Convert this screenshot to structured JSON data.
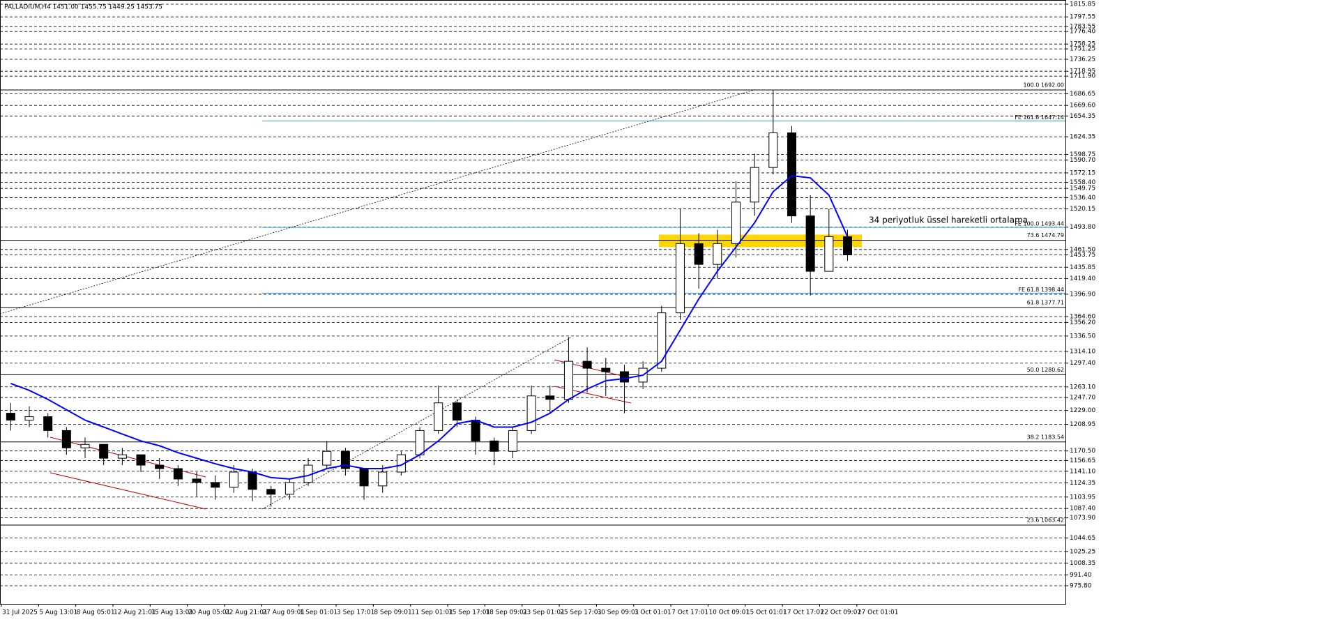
{
  "chart_data": {
    "type": "candlestick",
    "title": "PALLADIUM,H4  1451.00 1455.75 1449.25 1453.75",
    "annotation": "34 periyotluk üssel hareketli ortalama",
    "time_labels": [
      "31 Jul 2025",
      "5 Aug 13:01",
      "8 Aug 05:01",
      "12 Aug 21:01",
      "15 Aug 13:01",
      "20 Aug 05:01",
      "22 Aug 21:01",
      "27 Aug 09:01",
      "1 Sep 01:01",
      "3 Sep 17:01",
      "8 Sep 09:01",
      "11 Sep 01:01",
      "15 Sep 17:01",
      "18 Sep 09:01",
      "23 Sep 01:01",
      "25 Sep 17:01",
      "30 Sep 09:01",
      "3 Oct 01:01",
      "7 Oct 17:01",
      "10 Oct 09:01",
      "15 Oct 01:01",
      "17 Oct 17:01",
      "22 Oct 09:01",
      "27 Oct 01:01"
    ],
    "open": [
      1225,
      1215,
      1220,
      1200,
      1175,
      1180,
      1160,
      1165,
      1150,
      1145,
      1130,
      1125,
      1118,
      1140,
      1115,
      1108,
      1125,
      1150,
      1170,
      1145,
      1120,
      1140,
      1165,
      1200,
      1240,
      1215,
      1185,
      1170,
      1200,
      1250,
      1245,
      1300,
      1290,
      1285,
      1270,
      1290,
      1370,
      1470,
      1440,
      1470,
      1530,
      1580,
      1630,
      1510,
      1430,
      1480
    ],
    "high": [
      1240,
      1235,
      1225,
      1205,
      1190,
      1180,
      1175,
      1165,
      1160,
      1150,
      1140,
      1135,
      1150,
      1145,
      1120,
      1130,
      1160,
      1185,
      1175,
      1145,
      1150,
      1170,
      1205,
      1265,
      1245,
      1220,
      1190,
      1205,
      1265,
      1265,
      1335,
      1320,
      1305,
      1295,
      1300,
      1380,
      1520,
      1485,
      1490,
      1560,
      1600,
      1692,
      1640,
      1540,
      1520,
      1490
    ],
    "low": [
      1200,
      1205,
      1190,
      1165,
      1160,
      1150,
      1150,
      1140,
      1130,
      1120,
      1105,
      1100,
      1110,
      1098,
      1090,
      1100,
      1120,
      1145,
      1135,
      1100,
      1110,
      1135,
      1160,
      1195,
      1205,
      1165,
      1150,
      1160,
      1195,
      1225,
      1240,
      1255,
      1250,
      1225,
      1260,
      1285,
      1360,
      1405,
      1420,
      1450,
      1510,
      1570,
      1500,
      1395,
      1430,
      1445
    ],
    "close": [
      1215,
      1220,
      1200,
      1175,
      1180,
      1160,
      1165,
      1150,
      1145,
      1130,
      1125,
      1118,
      1140,
      1115,
      1108,
      1125,
      1150,
      1170,
      1145,
      1120,
      1140,
      1165,
      1200,
      1240,
      1215,
      1185,
      1170,
      1200,
      1250,
      1245,
      1300,
      1290,
      1285,
      1270,
      1290,
      1370,
      1470,
      1440,
      1470,
      1530,
      1580,
      1630,
      1510,
      1430,
      1480,
      1453.75
    ],
    "ema": {
      "color": "#0000ff",
      "values": [
        1268,
        1258,
        1245,
        1230,
        1215,
        1205,
        1195,
        1185,
        1178,
        1168,
        1160,
        1152,
        1145,
        1140,
        1132,
        1130,
        1135,
        1145,
        1150,
        1145,
        1145,
        1150,
        1165,
        1185,
        1210,
        1215,
        1205,
        1205,
        1212,
        1225,
        1245,
        1260,
        1272,
        1275,
        1280,
        1300,
        1345,
        1390,
        1430,
        1465,
        1500,
        1545,
        1568,
        1565,
        1540,
        1480
      ]
    },
    "ylim": [
      975.8,
      1815.85
    ],
    "yticks": [
      1815.85,
      1797.55,
      1783.55,
      {
        "value": 1776.4,
        "label": "1776.40"
      },
      1758.25,
      1751.25,
      1736.25,
      1718.95,
      {
        "value": 1711.9,
        "label": "1711.90"
      },
      1686.65,
      {
        "value": 1669.6,
        "label": "1669.60"
      },
      1654.35,
      1624.35,
      1598.75,
      {
        "value": 1590.7,
        "label": "1590.70"
      },
      1572.15,
      {
        "value": 1558.4,
        "label": "1558.40"
      },
      1549.75,
      {
        "value": 1536.4,
        "label": "1536.40"
      },
      1520.15,
      {
        "value": 1493.8,
        "label": "1493.80"
      },
      {
        "value": 1461.5,
        "label": "1461.50"
      },
      1453.75,
      1435.85,
      {
        "value": 1419.4,
        "label": "1419.40"
      },
      {
        "value": 1396.9,
        "label": "1396.90"
      },
      {
        "value": 1364.6,
        "label": "1364.60"
      },
      {
        "value": 1356.2,
        "label": "1356.20"
      },
      {
        "value": 1336.5,
        "label": "1336.50"
      },
      {
        "value": 1314.1,
        "label": "1314.10"
      },
      {
        "value": 1297.4,
        "label": "1297.40"
      },
      {
        "value": 1263.1,
        "label": "1263.10"
      },
      {
        "value": 1247.7,
        "label": "1247.70"
      },
      {
        "value": 1229,
        "label": "1229.00"
      },
      1208.95,
      {
        "value": 1170.5,
        "label": "1170.50"
      },
      1156.65,
      {
        "value": 1141.1,
        "label": "1141.10"
      },
      1124.35,
      1103.95,
      {
        "value": 1087.4,
        "label": "1087.40"
      },
      {
        "value": 1073.9,
        "label": "1073.90"
      },
      1044.65,
      1025.25,
      1008.35,
      {
        "value": 991.4,
        "label": "991.40"
      },
      {
        "value": 975.8,
        "label": "975.80"
      }
    ],
    "fib_levels": [
      {
        "label": "100.0 1692.00",
        "value": 1692
      },
      {
        "label": "73.6 1474.79",
        "value": 1474.79
      },
      {
        "label": "61.8 1377.71",
        "value": 1377.71
      },
      {
        "label": "50.0 1280.62",
        "value": 1280.62
      },
      {
        "label": "38.2 1183.54",
        "value": 1183.54
      },
      {
        "label": "23.6 1063.42",
        "value": 1063.42
      }
    ],
    "fe_levels": {
      "color": "#3399ff",
      "levels": [
        {
          "label": "FE 161.8 1647.14",
          "value": 1647.14
        },
        {
          "label": "FE 100.0 1493.44",
          "value": 1493.44
        },
        {
          "label": "FE 61.8 1398.44",
          "value": 1398.44
        }
      ]
    },
    "zone": {
      "color": "#ffd700",
      "values": [
        1465,
        1483
      ]
    }
  }
}
